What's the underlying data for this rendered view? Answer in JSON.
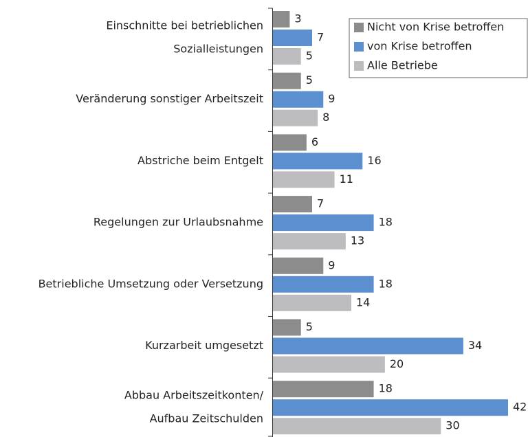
{
  "chart_data": {
    "type": "hbar",
    "categories": [
      [
        "Einschnitte bei betrieblichen",
        "Sozialleistungen"
      ],
      [
        "Veränderung sonstiger Arbeitszeit"
      ],
      [
        "Abstriche beim Entgelt"
      ],
      [
        "Regelungen zur Urlaubsnahme"
      ],
      [
        "Betriebliche Umsetzung oder Versetzung"
      ],
      [
        "Kurzarbeit umgesetzt"
      ],
      [
        "Abbau Arbeitszeitkonten/",
        "Aufbau Zeitschulden"
      ]
    ],
    "series": [
      {
        "name": "Nicht von Krise betroffen",
        "color": "#8c8c8c",
        "values": [
          3,
          5,
          6,
          7,
          9,
          5,
          18
        ]
      },
      {
        "name": "von Krise betroffen",
        "color": "#5b8fd0",
        "values": [
          7,
          9,
          16,
          18,
          18,
          34,
          42
        ]
      },
      {
        "name": "Alle Betriebe",
        "color": "#bdbdc0",
        "values": [
          5,
          8,
          11,
          13,
          14,
          20,
          30
        ]
      }
    ],
    "legend": "upper right"
  }
}
